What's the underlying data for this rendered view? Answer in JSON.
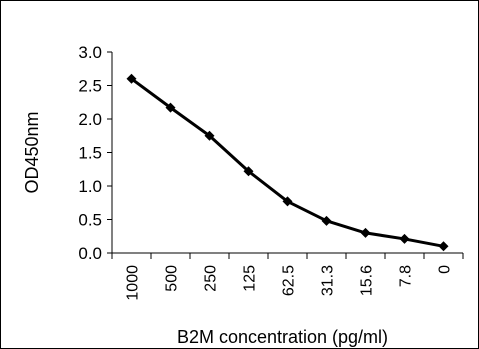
{
  "chart_data": {
    "type": "line",
    "categories": [
      "1000",
      "500",
      "250",
      "125",
      "62.5",
      "31.3",
      "15.6",
      "7.8",
      "0"
    ],
    "series": [
      {
        "values": [
          2.6,
          2.17,
          1.75,
          1.22,
          0.77,
          0.48,
          0.3,
          0.21,
          0.1
        ]
      }
    ],
    "xlabel": "B2M concentration (pg/ml)",
    "ylabel": "OD450nm",
    "ylim": [
      0,
      3
    ],
    "yticks": [
      "0.0",
      "0.5",
      "1.0",
      "1.5",
      "2.0",
      "2.5",
      "3.0"
    ],
    "grid": false,
    "colors": {
      "line": "#000000",
      "marker": "#000000"
    }
  }
}
